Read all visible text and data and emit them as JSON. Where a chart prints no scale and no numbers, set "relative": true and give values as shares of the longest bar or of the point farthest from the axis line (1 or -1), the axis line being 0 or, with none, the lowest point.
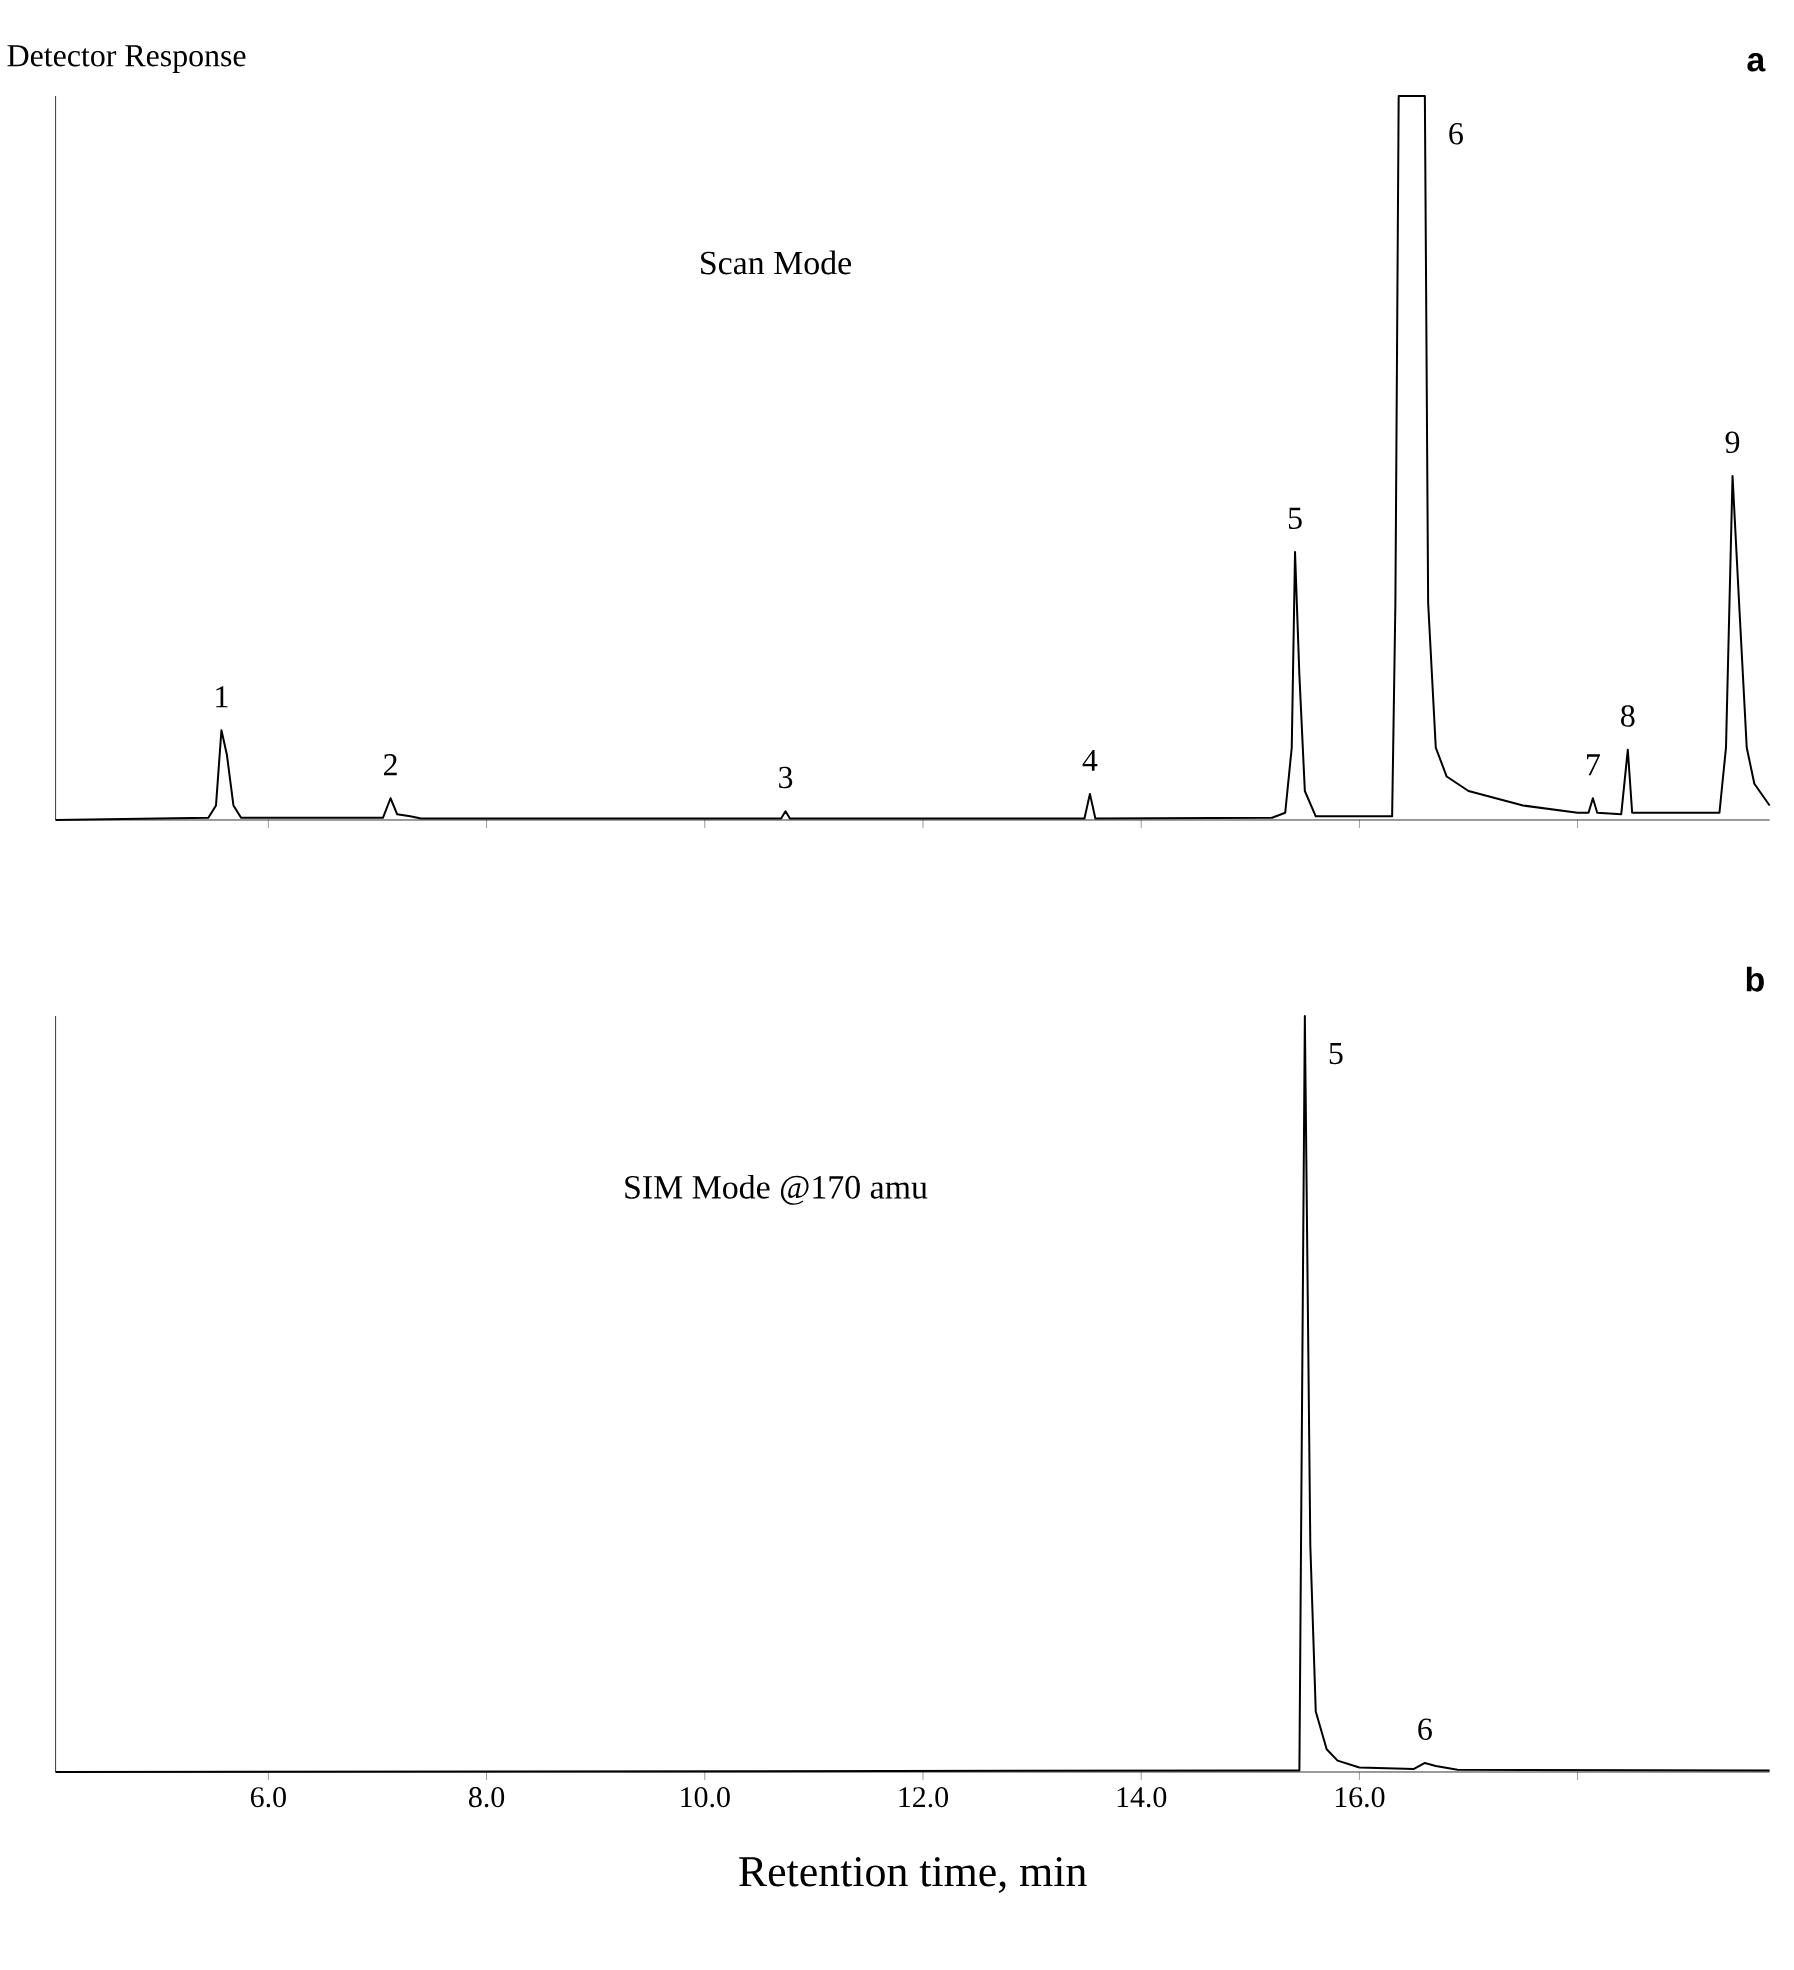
{
  "chart_data": [
    {
      "type": "line",
      "title": "a",
      "ylabel": "Detector Response",
      "relative": true,
      "xlim": [
        4.05,
        19.76
      ],
      "xticks": [
        {
          "value": 6,
          "label": null
        },
        {
          "value": 8,
          "label": null
        },
        {
          "value": 10,
          "label": null
        },
        {
          "value": 12,
          "label": null
        },
        {
          "value": 14,
          "label": null
        },
        {
          "value": 16,
          "label": null
        },
        {
          "value": 18,
          "label": null
        }
      ],
      "tick_labels": false,
      "line_style": "solid",
      "annotations": [
        "Scan Mode",
        {
          "text": "1",
          "x": 5.57,
          "y": 0.124
        },
        {
          "text": "2",
          "x": 7.12,
          "y": 0.03
        },
        {
          "text": "3",
          "x": 10.74,
          "y": 0.012
        },
        {
          "text": "4",
          "x": 13.53,
          "y": 0.036
        },
        {
          "text": "5",
          "x": 15.41,
          "y": 0.37
        },
        {
          "text": "6",
          "x": 16.6,
          "y": 1.0
        },
        {
          "text": "7",
          "x": 18.14,
          "y": 0.03
        },
        {
          "text": "8",
          "x": 18.46,
          "y": 0.097
        },
        {
          "text": "9",
          "x": 19.42,
          "y": 0.475
        }
      ],
      "x": [
        4.05,
        5.45,
        5.52,
        5.57,
        5.62,
        5.68,
        5.75,
        7.05,
        7.12,
        7.18,
        7.3,
        7.4,
        10.7,
        10.74,
        10.78,
        13.48,
        13.53,
        13.58,
        15.2,
        15.32,
        15.38,
        15.41,
        15.45,
        15.5,
        15.6,
        16.3,
        16.33,
        16.36,
        16.6,
        16.63,
        16.7,
        16.8,
        17.0,
        17.5,
        18.0,
        18.1,
        18.14,
        18.18,
        18.4,
        18.46,
        18.5,
        19.3,
        19.36,
        19.42,
        19.48,
        19.55,
        19.62,
        19.76
      ],
      "series": [
        {
          "color": "#000000",
          "values": [
            0,
            0.003,
            0.02,
            0.124,
            0.09,
            0.02,
            0.003,
            0.003,
            0.03,
            0.008,
            0.005,
            0.002,
            0.002,
            0.012,
            0.002,
            0.002,
            0.036,
            0.002,
            0.003,
            0.01,
            0.1,
            0.37,
            0.2,
            0.04,
            0.005,
            0.005,
            0.3,
            1.0,
            1.0,
            0.3,
            0.1,
            0.06,
            0.04,
            0.02,
            0.01,
            0.01,
            0.03,
            0.01,
            0.008,
            0.097,
            0.01,
            0.01,
            0.1,
            0.475,
            0.3,
            0.1,
            0.05,
            0.02
          ]
        }
      ]
    },
    {
      "type": "line",
      "title": "b",
      "xlabel": "Retention time, min",
      "relative": true,
      "xlim": [
        4.05,
        19.76
      ],
      "xticks": [
        {
          "value": 6,
          "label": "6.0"
        },
        {
          "value": 8,
          "label": "8.0"
        },
        {
          "value": 10,
          "label": "10.0"
        },
        {
          "value": 12,
          "label": "12.0"
        },
        {
          "value": 14,
          "label": "14.0"
        },
        {
          "value": 16,
          "label": "16.0"
        },
        {
          "value": 18,
          "label": null
        }
      ],
      "tick_labels": "x",
      "line_style": "solid",
      "annotations": [
        "SIM Mode @170 amu",
        {
          "text": "5",
          "x": 15.5,
          "y": 1.0
        },
        {
          "text": "6",
          "x": 16.6,
          "y": 0.012
        }
      ],
      "x": [
        4.05,
        15.45,
        15.5,
        15.55,
        15.6,
        15.7,
        15.8,
        16.0,
        16.5,
        16.6,
        16.7,
        16.9,
        19.76
      ],
      "series": [
        {
          "color": "#000000",
          "values": [
            0,
            0.002,
            1.0,
            0.3,
            0.08,
            0.03,
            0.015,
            0.006,
            0.004,
            0.012,
            0.008,
            0.003,
            0.002
          ]
        }
      ]
    }
  ]
}
